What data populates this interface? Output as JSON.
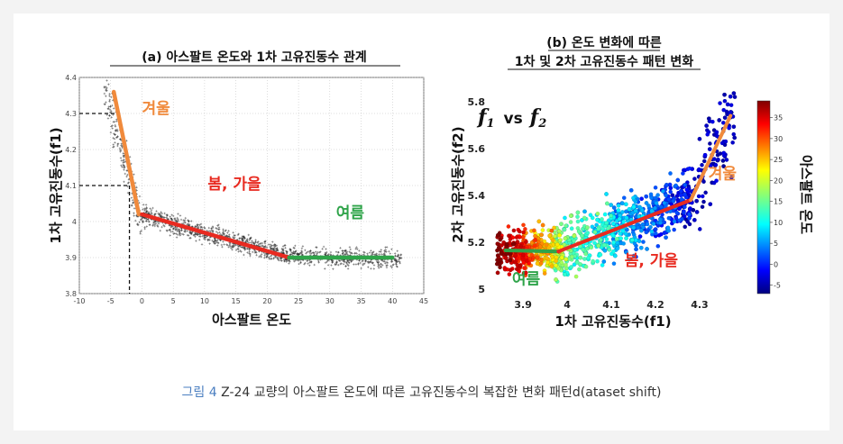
{
  "caption": {
    "figure_label": "그림 4",
    "text": "Z-24 교량의 아스팔트 온도에 따른 고유진동수의 복잡한 변화 패턴d(ataset shift)"
  },
  "colors": {
    "winter": "#f08a3c",
    "spring_fall": "#e82a20",
    "summer": "#2fa44a",
    "scatter_a": "#222222"
  },
  "chart_data": [
    {
      "type": "scatter",
      "title": "(a) 아스팔트 온도와 1차 고유진동수 관계",
      "xlabel": "아스팔트 온도",
      "ylabel": "1차 고유진동수(f1)",
      "xlim": [
        -10,
        45
      ],
      "ylim": [
        3.8,
        4.4
      ],
      "x_ticks": [
        -10,
        -5,
        0,
        5,
        10,
        15,
        20,
        25,
        30,
        35,
        40,
        45
      ],
      "y_ticks": [
        3.8,
        3.9,
        4,
        4.1,
        4.2,
        4.3,
        4.4
      ],
      "reference_lines": [
        {
          "y": 4.3,
          "x_end": -4
        },
        {
          "y": 4.1,
          "x_end": -2
        },
        {
          "x": -2,
          "y_end": 4.1
        }
      ],
      "segments": [
        {
          "name": "겨울",
          "color_key": "winter",
          "points": [
            [
              -4.5,
              4.36
            ],
            [
              -0.5,
              4.02
            ]
          ]
        },
        {
          "name": "봄, 가을",
          "color_key": "spring_fall",
          "points": [
            [
              0,
              4.02
            ],
            [
              23.5,
              3.9
            ]
          ]
        },
        {
          "name": "여름",
          "color_key": "summer",
          "points": [
            [
              23.5,
              3.9
            ],
            [
              40,
              3.9
            ]
          ]
        }
      ],
      "labels": [
        {
          "text": "겨울",
          "color_key": "winter",
          "x": 0,
          "y": 4.3
        },
        {
          "text": "봄, 가을",
          "color_key": "spring_fall",
          "x": 10.5,
          "y": 4.09
        },
        {
          "text": "여름",
          "color_key": "summer",
          "x": 31,
          "y": 4.01
        }
      ]
    },
    {
      "type": "scatter",
      "title_line1": "(b) 온도 변화에 따른",
      "title_line2": "1차 및 2차 고유진동수 패턴 변화",
      "annotation": {
        "f1": "f",
        "sub1": "1",
        "vs": "vs",
        "f2": "f",
        "sub2": "2"
      },
      "xlabel": "1차 고유진동수(f1)",
      "ylabel": "2차 고유진동수(f2)",
      "xlim": [
        3.82,
        4.39
      ],
      "ylim": [
        4.98,
        5.85
      ],
      "x_ticks": [
        3.9,
        4,
        4.1,
        4.2,
        4.3
      ],
      "y_ticks": [
        5,
        5.2,
        5.4,
        5.6,
        5.8
      ],
      "segments": [
        {
          "name": "여름",
          "color_key": "summer",
          "points": [
            [
              3.86,
              5.165
            ],
            [
              3.98,
              5.16
            ]
          ]
        },
        {
          "name": "봄, 가을",
          "color_key": "spring_fall",
          "points": [
            [
              3.98,
              5.16
            ],
            [
              4.28,
              5.38
            ]
          ]
        },
        {
          "name": "겨울",
          "color_key": "winter",
          "points": [
            [
              4.28,
              5.38
            ],
            [
              4.37,
              5.74
            ]
          ]
        }
      ],
      "labels": [
        {
          "text": "여름",
          "color_key": "summer",
          "x": 3.875,
          "y": 5.02
        },
        {
          "text": "봄, 가을",
          "color_key": "spring_fall",
          "x": 4.13,
          "y": 5.1
        },
        {
          "text": "겨울",
          "color_key": "winter",
          "x": 4.32,
          "y": 5.47
        }
      ],
      "colorbar": {
        "label": "아스팔트 온도",
        "ticks": [
          -5,
          0,
          5,
          10,
          15,
          20,
          25,
          30,
          35
        ],
        "range": [
          -7,
          39
        ]
      }
    }
  ]
}
